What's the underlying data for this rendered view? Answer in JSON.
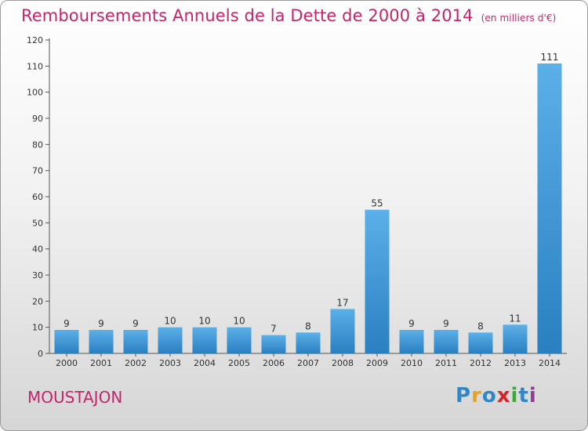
{
  "title": "Remboursements Annuels de la Dette de 2000 à 2014",
  "unit": "(en milliers d'€)",
  "town": "MOUSTAJON",
  "logo": {
    "letters": [
      "P",
      "r",
      "o",
      "x",
      "i",
      "t",
      "i"
    ],
    "colors": [
      "#2f86c9",
      "#e8a21a",
      "#2f86c9",
      "#d8232a",
      "#3aa935",
      "#2f86c9",
      "#8e3c97"
    ]
  },
  "colors": {
    "accent": "#c4256a",
    "bar_top": "#5bb0e8",
    "bar_bottom": "#2a7fc0"
  },
  "chart_data": {
    "type": "bar",
    "categories": [
      "2000",
      "2001",
      "2002",
      "2003",
      "2004",
      "2005",
      "2006",
      "2007",
      "2008",
      "2009",
      "2010",
      "2011",
      "2012",
      "2013",
      "2014"
    ],
    "values": [
      9,
      9,
      9,
      10,
      10,
      10,
      7,
      8,
      17,
      55,
      9,
      9,
      8,
      11,
      111
    ],
    "data_labels": [
      "9",
      "9",
      "9",
      "10",
      "10",
      "10",
      "7",
      "8",
      "17",
      "55",
      "9",
      "9",
      "8",
      "11",
      "111"
    ],
    "yticks": [
      "0",
      "10",
      "20",
      "30",
      "40",
      "50",
      "60",
      "70",
      "80",
      "90",
      "100",
      "110",
      "120"
    ],
    "ylim": [
      0,
      120
    ],
    "grid": false,
    "legend": "none"
  }
}
